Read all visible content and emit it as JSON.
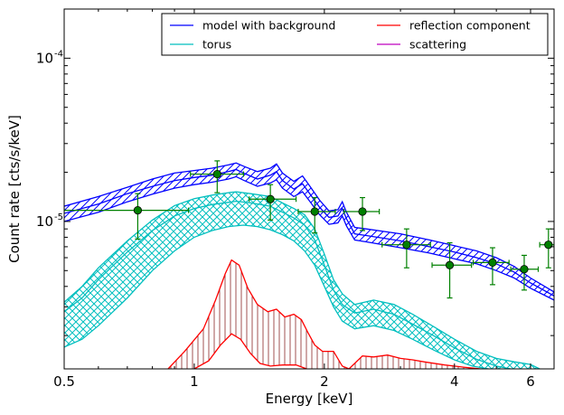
{
  "chart_data": {
    "type": "line",
    "title": "",
    "xlabel": "Energy [keV]",
    "ylabel": "Count rate [cts/s/keV]",
    "xscale": "log",
    "yscale": "log",
    "xlim": [
      0.5,
      6.8
    ],
    "ylim": [
      1.25e-06,
      0.0002
    ],
    "grid": false,
    "legend_position": "top-right",
    "legend_columns": 2,
    "x_ticks": [
      {
        "value": 0.5,
        "label": "0.5"
      },
      {
        "value": 1,
        "label": "1"
      },
      {
        "value": 2,
        "label": "2"
      },
      {
        "value": 4,
        "label": "4"
      },
      {
        "value": 6,
        "label": "6"
      }
    ],
    "y_ticks": [
      {
        "value": 1e-05,
        "base": "10",
        "exp": "-5"
      },
      {
        "value": 0.0001,
        "base": "10",
        "exp": "-4"
      }
    ],
    "series": [
      {
        "name": "model with background",
        "color": "#0000ff",
        "hatch": "diagonal",
        "upper": [
          [
            0.5,
            1.24e-05
          ],
          [
            0.6,
            1.42e-05
          ],
          [
            0.7,
            1.62e-05
          ],
          [
            0.8,
            1.82e-05
          ],
          [
            0.9,
            1.98e-05
          ],
          [
            1.0,
            2.05e-05
          ],
          [
            1.1,
            2.12e-05
          ],
          [
            1.2,
            2.22e-05
          ],
          [
            1.25,
            2.28e-05
          ],
          [
            1.3,
            2.18e-05
          ],
          [
            1.4,
            2.02e-05
          ],
          [
            1.5,
            2.12e-05
          ],
          [
            1.55,
            2.25e-05
          ],
          [
            1.6,
            1.98e-05
          ],
          [
            1.7,
            1.76e-05
          ],
          [
            1.78,
            1.9e-05
          ],
          [
            1.85,
            1.65e-05
          ],
          [
            1.95,
            1.35e-05
          ],
          [
            2.05,
            1.16e-05
          ],
          [
            2.15,
            1.18e-05
          ],
          [
            2.2,
            1.32e-05
          ],
          [
            2.25,
            1.14e-05
          ],
          [
            2.35,
            9.2e-06
          ],
          [
            2.5,
            9e-06
          ],
          [
            3.0,
            8.4e-06
          ],
          [
            3.5,
            7.7e-06
          ],
          [
            4.0,
            7.1e-06
          ],
          [
            4.5,
            6.6e-06
          ],
          [
            5.0,
            6e-06
          ],
          [
            5.5,
            5.3e-06
          ],
          [
            6.0,
            4.5e-06
          ],
          [
            6.8,
            3.7e-06
          ]
        ],
        "middle": [
          [
            0.5,
            1.12e-05
          ],
          [
            0.6,
            1.28e-05
          ],
          [
            0.7,
            1.48e-05
          ],
          [
            0.8,
            1.64e-05
          ],
          [
            0.9,
            1.78e-05
          ],
          [
            1.0,
            1.86e-05
          ],
          [
            1.1,
            1.92e-05
          ],
          [
            1.2,
            2.02e-05
          ],
          [
            1.25,
            2.08e-05
          ],
          [
            1.3,
            1.98e-05
          ],
          [
            1.4,
            1.82e-05
          ],
          [
            1.5,
            1.92e-05
          ],
          [
            1.55,
            2.02e-05
          ],
          [
            1.6,
            1.78e-05
          ],
          [
            1.7,
            1.58e-05
          ],
          [
            1.78,
            1.7e-05
          ],
          [
            1.85,
            1.48e-05
          ],
          [
            1.95,
            1.22e-05
          ],
          [
            2.05,
            1.06e-05
          ],
          [
            2.15,
            1.08e-05
          ],
          [
            2.2,
            1.2e-05
          ],
          [
            2.25,
            1.04e-05
          ],
          [
            2.35,
            8.4e-06
          ],
          [
            2.5,
            8.2e-06
          ],
          [
            3.0,
            7.6e-06
          ],
          [
            3.5,
            7e-06
          ],
          [
            4.0,
            6.5e-06
          ],
          [
            4.5,
            6e-06
          ],
          [
            5.0,
            5.5e-06
          ],
          [
            5.5,
            4.9e-06
          ],
          [
            6.0,
            4.2e-06
          ],
          [
            6.8,
            3.5e-06
          ]
        ],
        "lower": [
          [
            0.5,
            1e-05
          ],
          [
            0.6,
            1.14e-05
          ],
          [
            0.7,
            1.32e-05
          ],
          [
            0.8,
            1.47e-05
          ],
          [
            0.9,
            1.6e-05
          ],
          [
            1.0,
            1.68e-05
          ],
          [
            1.1,
            1.74e-05
          ],
          [
            1.2,
            1.82e-05
          ],
          [
            1.25,
            1.88e-05
          ],
          [
            1.3,
            1.79e-05
          ],
          [
            1.4,
            1.64e-05
          ],
          [
            1.5,
            1.72e-05
          ],
          [
            1.55,
            1.8e-05
          ],
          [
            1.6,
            1.6e-05
          ],
          [
            1.7,
            1.42e-05
          ],
          [
            1.78,
            1.52e-05
          ],
          [
            1.85,
            1.33e-05
          ],
          [
            1.95,
            1.1e-05
          ],
          [
            2.05,
            9.6e-06
          ],
          [
            2.15,
            9.8e-06
          ],
          [
            2.2,
            1.08e-05
          ],
          [
            2.25,
            9.4e-06
          ],
          [
            2.35,
            7.7e-06
          ],
          [
            2.5,
            7.5e-06
          ],
          [
            3.0,
            6.9e-06
          ],
          [
            3.5,
            6.4e-06
          ],
          [
            4.0,
            5.9e-06
          ],
          [
            4.5,
            5.5e-06
          ],
          [
            5.0,
            5e-06
          ],
          [
            5.5,
            4.5e-06
          ],
          [
            6.0,
            3.9e-06
          ],
          [
            6.8,
            3.3e-06
          ]
        ]
      },
      {
        "name": "torus",
        "color": "#00bfbf",
        "hatch": "cross",
        "upper": [
          [
            0.5,
            3.2e-06
          ],
          [
            0.55,
            4e-06
          ],
          [
            0.6,
            5.2e-06
          ],
          [
            0.7,
            7.6e-06
          ],
          [
            0.8,
            1.02e-05
          ],
          [
            0.9,
            1.25e-05
          ],
          [
            1.0,
            1.38e-05
          ],
          [
            1.1,
            1.45e-05
          ],
          [
            1.2,
            1.5e-05
          ],
          [
            1.25,
            1.52e-05
          ],
          [
            1.35,
            1.48e-05
          ],
          [
            1.5,
            1.42e-05
          ],
          [
            1.6,
            1.3e-05
          ],
          [
            1.7,
            1.2e-05
          ],
          [
            1.8,
            1.1e-05
          ],
          [
            1.9,
            9e-06
          ],
          [
            2.0,
            6.3e-06
          ],
          [
            2.1,
            4.4e-06
          ],
          [
            2.2,
            3.6e-06
          ],
          [
            2.35,
            3.1e-06
          ],
          [
            2.6,
            3.3e-06
          ],
          [
            2.9,
            3.1e-06
          ],
          [
            3.2,
            2.7e-06
          ],
          [
            3.6,
            2.25e-06
          ],
          [
            4.0,
            1.9e-06
          ],
          [
            4.5,
            1.6e-06
          ],
          [
            5.0,
            1.45e-06
          ],
          [
            5.5,
            1.38e-06
          ],
          [
            6.0,
            1.33e-06
          ],
          [
            6.3,
            1.25e-06
          ]
        ],
        "lower": [
          [
            0.5,
            1.7e-06
          ],
          [
            0.55,
            1.9e-06
          ],
          [
            0.6,
            2.3e-06
          ],
          [
            0.7,
            3.4e-06
          ],
          [
            0.8,
            5e-06
          ],
          [
            0.9,
            6.6e-06
          ],
          [
            1.0,
            8e-06
          ],
          [
            1.1,
            8.8e-06
          ],
          [
            1.2,
            9.3e-06
          ],
          [
            1.3,
            9.5e-06
          ],
          [
            1.4,
            9.3e-06
          ],
          [
            1.5,
            8.9e-06
          ],
          [
            1.6,
            8.3e-06
          ],
          [
            1.7,
            7.6e-06
          ],
          [
            1.8,
            6.6e-06
          ],
          [
            1.9,
            5.4e-06
          ],
          [
            2.0,
            4e-06
          ],
          [
            2.1,
            3e-06
          ],
          [
            2.2,
            2.45e-06
          ],
          [
            2.35,
            2.2e-06
          ],
          [
            2.6,
            2.3e-06
          ],
          [
            2.9,
            2.15e-06
          ],
          [
            3.2,
            1.9e-06
          ],
          [
            3.6,
            1.62e-06
          ],
          [
            4.0,
            1.42e-06
          ],
          [
            4.4,
            1.3e-06
          ],
          [
            4.8,
            1.25e-06
          ]
        ],
        "inner": [
          [
            0.5,
            2.8e-06
          ],
          [
            0.55,
            3.4e-06
          ],
          [
            0.6,
            4.4e-06
          ],
          [
            0.7,
            6.5e-06
          ],
          [
            0.8,
            8.8e-06
          ],
          [
            0.9,
            1.08e-05
          ],
          [
            1.0,
            1.2e-05
          ],
          [
            1.1,
            1.27e-05
          ],
          [
            1.2,
            1.31e-05
          ],
          [
            1.25,
            1.33e-05
          ],
          [
            1.35,
            1.3e-05
          ],
          [
            1.5,
            1.24e-05
          ],
          [
            1.6,
            1.14e-05
          ],
          [
            1.7,
            1.05e-05
          ],
          [
            1.8,
            9.5e-06
          ],
          [
            1.9,
            7.7e-06
          ],
          [
            2.0,
            5.4e-06
          ],
          [
            2.1,
            3.8e-06
          ],
          [
            2.2,
            3.1e-06
          ],
          [
            2.35,
            2.75e-06
          ],
          [
            2.6,
            2.9e-06
          ],
          [
            2.9,
            2.7e-06
          ],
          [
            3.2,
            2.35e-06
          ],
          [
            3.6,
            1.98e-06
          ],
          [
            4.0,
            1.68e-06
          ],
          [
            4.5,
            1.43e-06
          ],
          [
            5.0,
            1.3e-06
          ],
          [
            5.4,
            1.25e-06
          ]
        ]
      },
      {
        "name": "reflection component",
        "color": "#ff0000",
        "hatch": "vertical",
        "upper": [
          [
            0.87,
            1.25e-06
          ],
          [
            0.95,
            1.6e-06
          ],
          [
            1.05,
            2.2e-06
          ],
          [
            1.12,
            3.3e-06
          ],
          [
            1.18,
            4.8e-06
          ],
          [
            1.22,
            5.8e-06
          ],
          [
            1.27,
            5.4e-06
          ],
          [
            1.33,
            3.9e-06
          ],
          [
            1.4,
            3.1e-06
          ],
          [
            1.48,
            2.8e-06
          ],
          [
            1.55,
            2.9e-06
          ],
          [
            1.62,
            2.6e-06
          ],
          [
            1.7,
            2.7e-06
          ],
          [
            1.77,
            2.5e-06
          ],
          [
            1.83,
            2.1e-06
          ],
          [
            1.9,
            1.75e-06
          ],
          [
            1.98,
            1.6e-06
          ],
          [
            2.1,
            1.6e-06
          ],
          [
            2.2,
            1.3e-06
          ],
          [
            2.28,
            1.25e-06
          ],
          [
            2.45,
            1.5e-06
          ],
          [
            2.6,
            1.48e-06
          ],
          [
            2.8,
            1.52e-06
          ],
          [
            3.0,
            1.45e-06
          ],
          [
            3.2,
            1.42e-06
          ],
          [
            3.4,
            1.38e-06
          ],
          [
            3.8,
            1.32e-06
          ],
          [
            4.2,
            1.28e-06
          ],
          [
            4.6,
            1.25e-06
          ]
        ],
        "lower": [
          [
            1.0,
            1.25e-06
          ],
          [
            1.08,
            1.4e-06
          ],
          [
            1.15,
            1.75e-06
          ],
          [
            1.22,
            2.05e-06
          ],
          [
            1.28,
            1.9e-06
          ],
          [
            1.35,
            1.55e-06
          ],
          [
            1.42,
            1.35e-06
          ],
          [
            1.5,
            1.3e-06
          ],
          [
            1.6,
            1.32e-06
          ],
          [
            1.72,
            1.32e-06
          ],
          [
            1.82,
            1.25e-06
          ]
        ]
      },
      {
        "name": "scattering",
        "color": "#bf00bf",
        "hatch": "none"
      }
    ],
    "data_points": {
      "color": "#008000",
      "marker": "circle",
      "points": [
        {
          "x": 0.74,
          "y": 1.17e-05,
          "xlo": 0.5,
          "xhi": 0.97,
          "ylo": 7.8e-06,
          "yhi": 1.48e-05
        },
        {
          "x": 1.13,
          "y": 1.95e-05,
          "xlo": 0.98,
          "xhi": 1.3,
          "ylo": 1.5e-05,
          "yhi": 2.35e-05
        },
        {
          "x": 1.5,
          "y": 1.37e-05,
          "xlo": 1.34,
          "xhi": 1.72,
          "ylo": 1.02e-05,
          "yhi": 1.68e-05
        },
        {
          "x": 1.9,
          "y": 1.15e-05,
          "xlo": 1.74,
          "xhi": 2.12,
          "ylo": 8.5e-06,
          "yhi": 1.4e-05
        },
        {
          "x": 2.45,
          "y": 1.15e-05,
          "xlo": 2.22,
          "xhi": 2.68,
          "ylo": 8.8e-06,
          "yhi": 1.4e-05
        },
        {
          "x": 3.1,
          "y": 7.2e-06,
          "xlo": 2.72,
          "xhi": 3.52,
          "ylo": 5.2e-06,
          "yhi": 9e-06
        },
        {
          "x": 3.9,
          "y": 5.4e-06,
          "xlo": 3.55,
          "xhi": 4.38,
          "ylo": 3.4e-06,
          "yhi": 7.4e-06
        },
        {
          "x": 4.9,
          "y": 5.6e-06,
          "xlo": 4.42,
          "xhi": 5.35,
          "ylo": 4.1e-06,
          "yhi": 6.9e-06
        },
        {
          "x": 5.8,
          "y": 5.1e-06,
          "xlo": 5.4,
          "xhi": 6.25,
          "ylo": 3.8e-06,
          "yhi": 6.2e-06
        },
        {
          "x": 6.6,
          "y": 7.2e-06,
          "xlo": 6.3,
          "xhi": 6.8,
          "ylo": 5.2e-06,
          "yhi": 9e-06
        }
      ]
    }
  }
}
